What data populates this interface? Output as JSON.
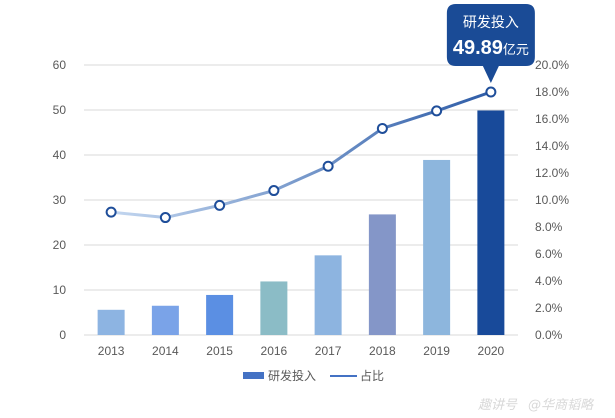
{
  "chart_data": {
    "type": "bar+line",
    "categories": [
      "2013",
      "2014",
      "2015",
      "2016",
      "2017",
      "2018",
      "2019",
      "2020"
    ],
    "series": [
      {
        "name": "研发投入",
        "type": "bar",
        "axis": "left",
        "values": [
          5.6,
          6.5,
          8.9,
          11.9,
          17.7,
          26.8,
          38.9,
          49.89
        ],
        "colors": [
          "#8db4e2",
          "#7aa3e8",
          "#5b8fe3",
          "#8bbcc6",
          "#8db4e0",
          "#8496c8",
          "#8db6dd",
          "#184a9a"
        ]
      },
      {
        "name": "占比",
        "type": "line",
        "axis": "right",
        "values": [
          9.1,
          8.7,
          9.6,
          10.7,
          12.5,
          15.3,
          16.6,
          18.0
        ]
      }
    ],
    "y_left": {
      "min": 0,
      "max": 60,
      "ticks": [
        "0",
        "10",
        "20",
        "30",
        "40",
        "50",
        "60"
      ]
    },
    "y_right": {
      "min": 0,
      "max": 20,
      "ticks": [
        "0.0%",
        "2.0%",
        "4.0%",
        "6.0%",
        "8.0%",
        "10.0%",
        "12.0%",
        "14.0%",
        "16.0%",
        "18.0%",
        "20.0%"
      ]
    },
    "grid": true,
    "legend": {
      "placement": "bottom",
      "entries": [
        "研发投入",
        "占比"
      ]
    },
    "annotation": {
      "title": "研发投入",
      "value": "49.89",
      "unit": "亿元",
      "target_category": "2020"
    }
  },
  "colors": {
    "axis_text": "#595959",
    "grid": "#d9d9d9",
    "line_start": "#c6d9f1",
    "line_end": "#2b5aa6",
    "callout_bg": "#1a4b96",
    "legend_bar": "#4472c4",
    "legend_line": "#4472c4"
  },
  "watermark": {
    "left": "趣讲号",
    "right": "@华商韬略"
  }
}
